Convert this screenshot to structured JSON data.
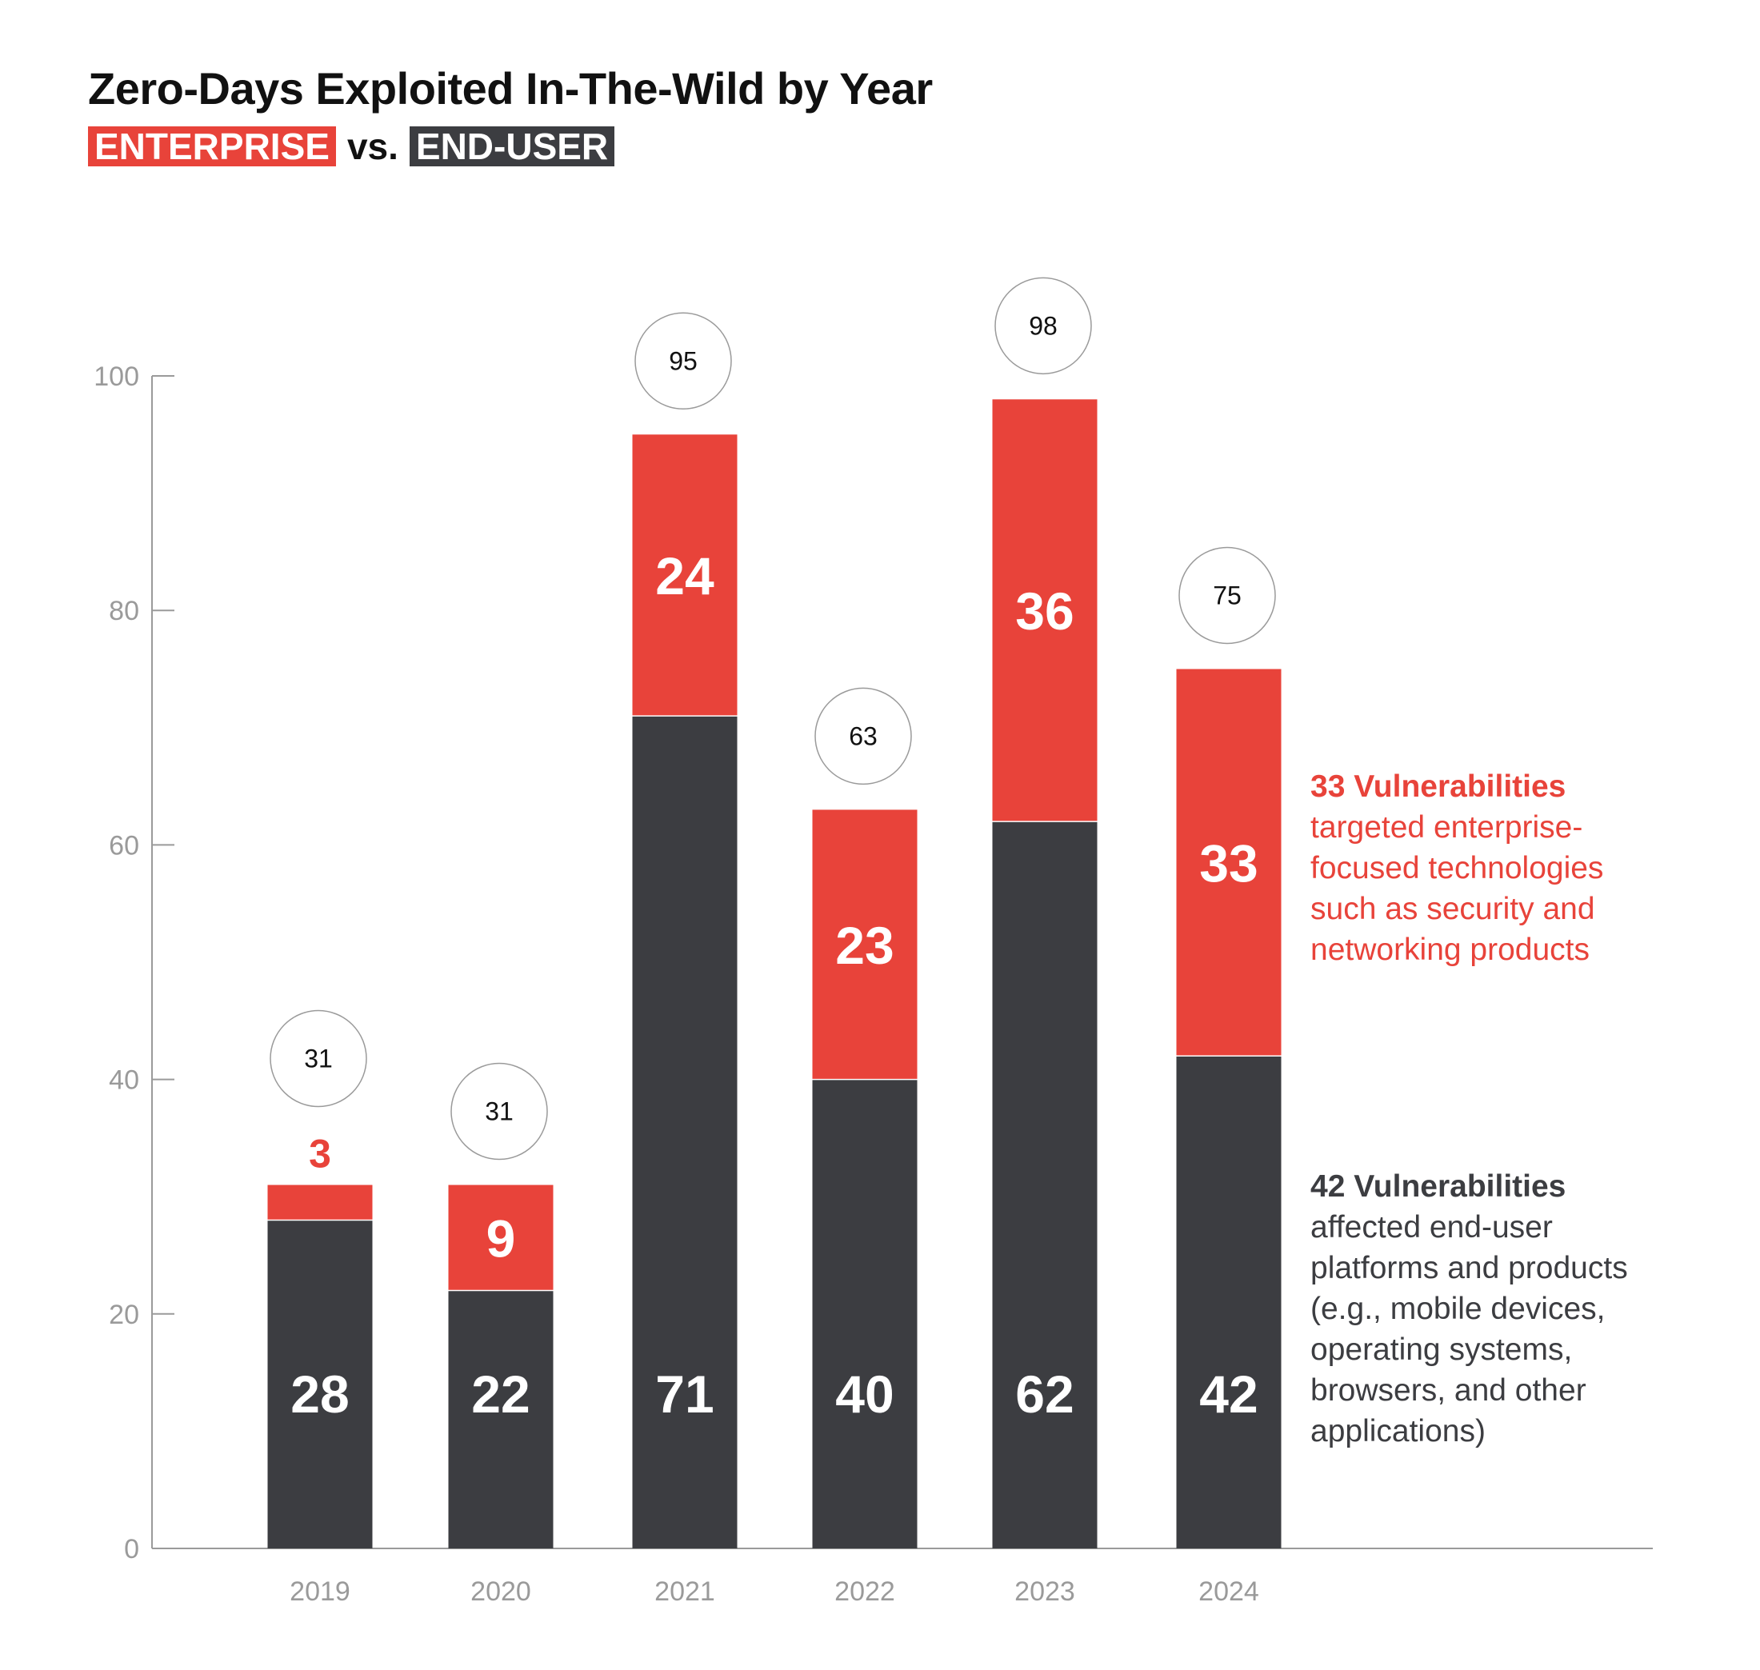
{
  "colors": {
    "enterprise": "#E8433A",
    "end_user": "#3C3D41",
    "axis": "#9A9A9A",
    "bubble_stroke": "#9A9A9A"
  },
  "chart_data": {
    "type": "bar",
    "stacked": true,
    "title": "Zero-Days Exploited In-The-Wild by Year",
    "subtitle": {
      "enterprise": "ENTERPRISE",
      "vs": "vs.",
      "end_user": "END-USER"
    },
    "categories": [
      "2019",
      "2020",
      "2021",
      "2022",
      "2023",
      "2024"
    ],
    "series": [
      {
        "name": "END-USER",
        "values": [
          28,
          22,
          71,
          40,
          62,
          42
        ]
      },
      {
        "name": "ENTERPRISE",
        "values": [
          3,
          9,
          24,
          23,
          36,
          33
        ]
      }
    ],
    "totals": [
      31,
      31,
      95,
      63,
      98,
      75
    ],
    "ylim": [
      0,
      100
    ],
    "yticks": [
      0,
      20,
      40,
      60,
      80,
      100
    ],
    "grid": false,
    "annotations": {
      "enterprise": {
        "headline": "33 Vulnerabilities",
        "lines": [
          "targeted enterprise-",
          "focused technologies",
          "such as security and",
          "networking products"
        ]
      },
      "end_user": {
        "headline": "42 Vulnerabilities",
        "lines": [
          "affected end-user",
          "platforms and products",
          "(e.g., mobile devices,",
          "operating systems,",
          "browsers, and other",
          "applications)"
        ]
      }
    }
  }
}
